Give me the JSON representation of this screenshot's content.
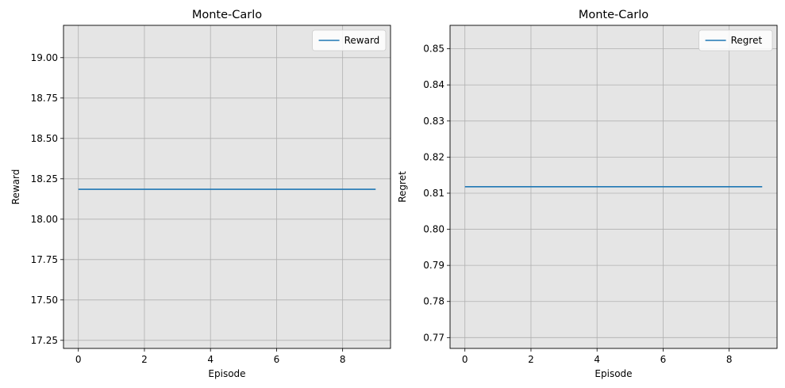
{
  "chart_data": [
    {
      "type": "line",
      "title": "Monte-Carlo",
      "xlabel": "Episode",
      "ylabel": "Reward",
      "xlim": [
        -0.45,
        9.45
      ],
      "ylim": [
        17.2,
        19.2
      ],
      "xticks": [
        0,
        2,
        4,
        6,
        8
      ],
      "xtick_labels": [
        "0",
        "2",
        "4",
        "6",
        "8"
      ],
      "yticks": [
        17.25,
        17.5,
        17.75,
        18.0,
        18.25,
        18.5,
        18.75,
        19.0
      ],
      "ytick_labels": [
        "17.25",
        "17.50",
        "17.75",
        "18.00",
        "18.25",
        "18.50",
        "18.75",
        "19.00"
      ],
      "grid": true,
      "legend_position": "top-right",
      "series": [
        {
          "name": "Reward",
          "color": "#1f77b4",
          "x": [
            0,
            1,
            2,
            3,
            4,
            5,
            6,
            7,
            8,
            9
          ],
          "y": [
            18.185,
            18.185,
            18.185,
            18.185,
            18.185,
            18.185,
            18.185,
            18.185,
            18.185,
            18.185
          ]
        }
      ]
    },
    {
      "type": "line",
      "title": "Monte-Carlo",
      "xlabel": "Episode",
      "ylabel": "Regret",
      "xlim": [
        -0.45,
        9.45
      ],
      "ylim": [
        0.767,
        0.8565
      ],
      "xticks": [
        0,
        2,
        4,
        6,
        8
      ],
      "xtick_labels": [
        "0",
        "2",
        "4",
        "6",
        "8"
      ],
      "yticks": [
        0.77,
        0.78,
        0.79,
        0.8,
        0.81,
        0.82,
        0.83,
        0.84,
        0.85
      ],
      "ytick_labels": [
        "0.77",
        "0.78",
        "0.79",
        "0.80",
        "0.81",
        "0.82",
        "0.83",
        "0.84",
        "0.85"
      ],
      "grid": true,
      "legend_position": "top-right",
      "series": [
        {
          "name": "Regret",
          "color": "#1f77b4",
          "x": [
            0,
            1,
            2,
            3,
            4,
            5,
            6,
            7,
            8,
            9
          ],
          "y": [
            0.8118,
            0.8118,
            0.8118,
            0.8118,
            0.8118,
            0.8118,
            0.8118,
            0.8118,
            0.8118,
            0.8118
          ]
        }
      ]
    }
  ]
}
